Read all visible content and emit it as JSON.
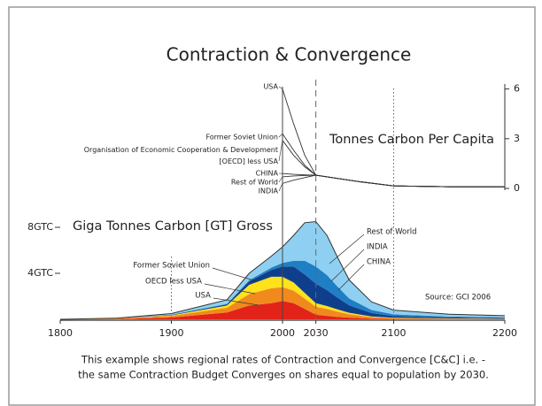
{
  "title": "Contraction & Convergence",
  "caption": [
    "This example shows regional rates of Contraction and Convergence [C&C] i.e. -",
    "the same Contraction Budget Converges on shares equal to population by 2030."
  ],
  "chart_data": [
    {
      "type": "line",
      "title": "Tonnes Carbon Per Capita",
      "x": [
        2000,
        2010,
        2020,
        2030,
        2050,
        2070,
        2100,
        2150,
        2200
      ],
      "xlim": [
        2000,
        2200
      ],
      "ylim": [
        0,
        6.3
      ],
      "yticks": [
        0,
        3,
        6
      ],
      "color": "#333333",
      "series": [
        {
          "name": "USA",
          "values": [
            6.0,
            3.9,
            2.0,
            0.8,
            0.6,
            0.4,
            0.15,
            0.1,
            0.1
          ]
        },
        {
          "name": "Former Soviet Union",
          "values": [
            3.3,
            2.3,
            1.4,
            0.8,
            0.6,
            0.4,
            0.15,
            0.1,
            0.1
          ]
        },
        {
          "name": "Organisation of Economic Cooperation & Development\n[OECD] less USA",
          "values": [
            2.9,
            2.0,
            1.3,
            0.8,
            0.6,
            0.4,
            0.15,
            0.1,
            0.1
          ]
        },
        {
          "name": "CHINA",
          "values": [
            0.9,
            0.85,
            0.82,
            0.8,
            0.6,
            0.4,
            0.15,
            0.1,
            0.1
          ]
        },
        {
          "name": "Rest of World",
          "values": [
            0.7,
            0.75,
            0.78,
            0.8,
            0.6,
            0.4,
            0.15,
            0.1,
            0.1
          ]
        },
        {
          "name": "INDIA",
          "values": [
            0.3,
            0.5,
            0.65,
            0.8,
            0.6,
            0.4,
            0.15,
            0.1,
            0.1
          ]
        }
      ]
    },
    {
      "type": "stacked_area",
      "title": "Giga Tonnes Carbon [GT] Gross",
      "annotation": "Source:  GCI 2006",
      "x": [
        1800,
        1850,
        1900,
        1950,
        1970,
        1990,
        2000,
        2010,
        2020,
        2030,
        2040,
        2050,
        2060,
        2080,
        2100,
        2150,
        2200
      ],
      "xlim": [
        1800,
        2200
      ],
      "xticks": [
        1800,
        1900,
        2000,
        2030,
        2100,
        2200
      ],
      "xgrid_styles": [
        "none",
        "dotted",
        "solid",
        "dashed",
        "dotted",
        "none"
      ],
      "ylim": [
        0,
        9
      ],
      "yticks": [
        {
          "value": 8,
          "label": "8GTC"
        },
        {
          "value": 4,
          "label": "4GTC"
        }
      ],
      "series": [
        {
          "name": "USA",
          "color": "#e2231a",
          "values": [
            0,
            0.02,
            0.15,
            0.6,
            1.2,
            1.4,
            1.6,
            1.4,
            0.9,
            0.4,
            0.3,
            0.2,
            0.14,
            0.06,
            0.03,
            0.02,
            0.01
          ]
        },
        {
          "name": "OECD less USA",
          "color": "#f08a1c",
          "values": [
            0,
            0.04,
            0.15,
            0.4,
            1.0,
            1.3,
            1.2,
            1.1,
            0.9,
            0.7,
            0.6,
            0.45,
            0.3,
            0.13,
            0.07,
            0.04,
            0.03
          ]
        },
        {
          "name": "Former Soviet Union",
          "color": "#ffe21a",
          "values": [
            0,
            0.01,
            0.05,
            0.2,
            0.8,
            1.0,
            0.9,
            0.7,
            0.5,
            0.3,
            0.25,
            0.2,
            0.13,
            0.06,
            0.03,
            0.02,
            0.01
          ]
        },
        {
          "name": "CHINA",
          "color": "#0f3f8c",
          "values": [
            0,
            0.01,
            0.03,
            0.1,
            0.3,
            0.6,
            0.9,
            1.4,
            1.6,
            1.7,
            1.4,
            1.0,
            0.65,
            0.3,
            0.15,
            0.08,
            0.06
          ]
        },
        {
          "name": "INDIA",
          "color": "#1f7fc4",
          "values": [
            0,
            0.01,
            0.02,
            0.05,
            0.1,
            0.2,
            0.3,
            0.5,
            1.2,
            1.5,
            1.3,
            0.95,
            0.6,
            0.27,
            0.15,
            0.08,
            0.06
          ]
        },
        {
          "name": "Rest of World",
          "color": "#8fd0f2",
          "values": [
            0,
            0.01,
            0.1,
            0.35,
            0.6,
            1.0,
            1.4,
            2.2,
            3.3,
            3.9,
            3.45,
            2.5,
            1.6,
            0.7,
            0.37,
            0.2,
            0.15
          ]
        }
      ]
    }
  ]
}
